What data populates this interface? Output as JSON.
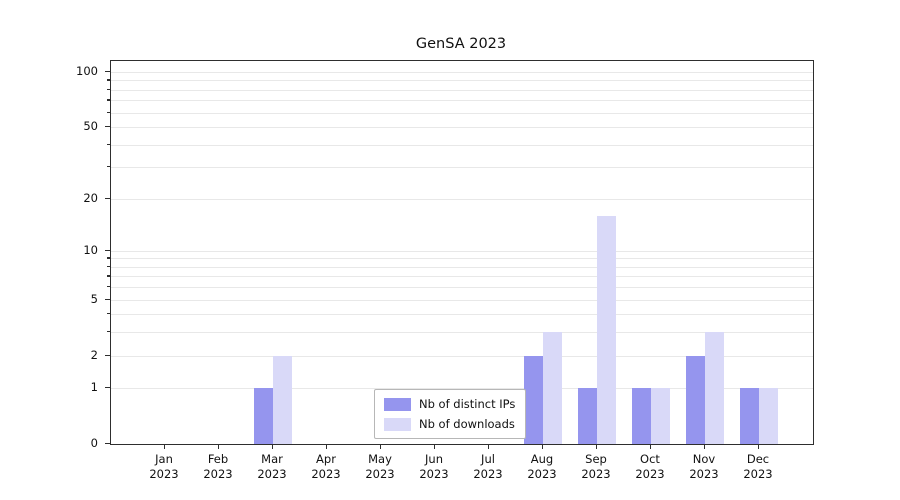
{
  "title": "GenSA 2023",
  "chart_data": {
    "type": "bar",
    "title": "GenSA 2023",
    "scale": "log1p",
    "grid": "horizontal-minor",
    "ylim": [
      0,
      115
    ],
    "categories": [
      "Jan 2023",
      "Feb 2023",
      "Mar 2023",
      "Apr 2023",
      "May 2023",
      "Jun 2023",
      "Jul 2023",
      "Aug 2023",
      "Sep 2023",
      "Oct 2023",
      "Nov 2023",
      "Dec 2023"
    ],
    "series": [
      {
        "name": "Nb of distinct IPs",
        "color": "#9595ee",
        "values": [
          0,
          0,
          1,
          0,
          0,
          0,
          0,
          2,
          1,
          1,
          2,
          1
        ]
      },
      {
        "name": "Nb of downloads",
        "color": "#d9d9f8",
        "values": [
          0,
          0,
          2,
          0,
          0,
          0,
          0,
          3,
          16,
          1,
          3,
          1
        ]
      }
    ],
    "yticks": [
      0,
      1,
      2,
      5,
      10,
      20,
      50,
      100
    ],
    "minor_gridlines": [
      1,
      2,
      3,
      4,
      5,
      6,
      7,
      8,
      9,
      10,
      20,
      30,
      40,
      50,
      60,
      70,
      80,
      90,
      100
    ],
    "legend_position": "bottom-center"
  }
}
